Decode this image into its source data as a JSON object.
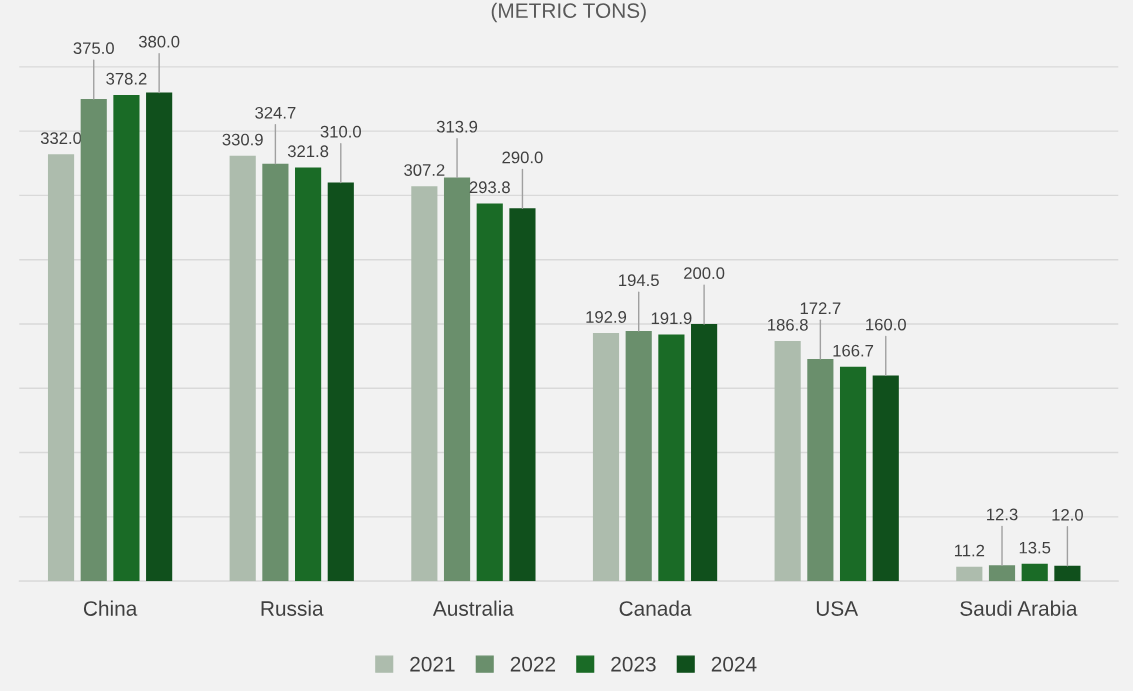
{
  "chart_data": {
    "type": "bar",
    "title": "(METRIC TONS)",
    "categories": [
      "China",
      "Russia",
      "Australia",
      "Canada",
      "USA",
      "Saudi Arabia"
    ],
    "series": [
      {
        "name": "2021",
        "color": "#adbcad",
        "values": [
          332.0,
          330.9,
          307.2,
          192.9,
          186.8,
          11.2
        ],
        "value_labels": [
          "332.0",
          "330.9",
          "307.2",
          "192.9",
          "186.8",
          "11.2"
        ]
      },
      {
        "name": "2022",
        "color": "#6a8f6c",
        "values": [
          375.0,
          324.7,
          313.9,
          194.5,
          172.7,
          12.3
        ],
        "value_labels": [
          "375.0",
          "324.7",
          "313.9",
          "194.5",
          "172.7",
          "12.3"
        ]
      },
      {
        "name": "2023",
        "color": "#1a6b26",
        "values": [
          378.2,
          321.8,
          293.8,
          191.9,
          166.7,
          13.5
        ],
        "value_labels": [
          "378.2",
          "321.8",
          "293.8",
          "191.9",
          "166.7",
          "13.5"
        ]
      },
      {
        "name": "2024",
        "color": "#10501c",
        "values": [
          380.0,
          310.0,
          290.0,
          200.0,
          160.0,
          12.0
        ],
        "value_labels": [
          "380.0",
          "310.0",
          "290.0",
          "200.0",
          "160.0",
          "12.0"
        ]
      }
    ],
    "ylim": [
      0,
      452
    ],
    "yticks": [
      {
        "value": 0,
        "label": null
      },
      {
        "value": 50,
        "label": null
      },
      {
        "value": 100,
        "label": null
      },
      {
        "value": 150,
        "label": null
      },
      {
        "value": 200,
        "label": null
      },
      {
        "value": 250,
        "label": null
      },
      {
        "value": 300,
        "label": null
      },
      {
        "value": 350,
        "label": null
      },
      {
        "value": 400,
        "label": null
      }
    ],
    "tick_labels": "x",
    "grid": "y",
    "legend": "bottom"
  }
}
